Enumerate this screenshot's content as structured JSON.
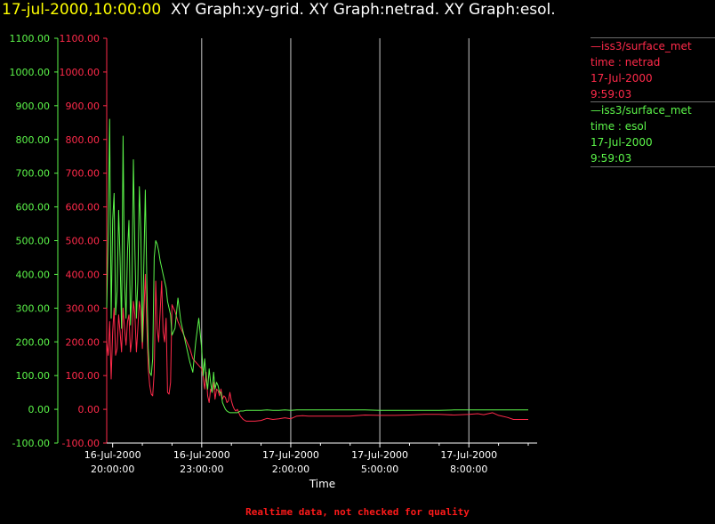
{
  "header": {
    "timestamp": "17-jul-2000,10:00:00",
    "graphs": "XY Graph:xy-grid.  XY Graph:netrad.  XY Graph:esol."
  },
  "colors": {
    "netrad": "#ff2a4a",
    "esol": "#5cf64a",
    "grid": "#c8c8c8",
    "axis": "#ffffff"
  },
  "legend": [
    {
      "line1": "—iss3/surface_met",
      "line2": "time : netrad",
      "line3": "17-Jul-2000",
      "line4": "9:59:03",
      "color": "#ff2a4a"
    },
    {
      "line1": "—iss3/surface_met",
      "line2": "time : esol",
      "line3": "17-Jul-2000",
      "line4": "9:59:03",
      "color": "#5cf64a"
    }
  ],
  "footer": "Realtime data, not checked for quality",
  "chart_data": {
    "type": "line",
    "xlabel": "Time",
    "x_ticks": [
      {
        "t": 20,
        "date": "16-Jul-2000",
        "time": "20:00:00"
      },
      {
        "t": 23,
        "date": "16-Jul-2000",
        "time": "23:00:00"
      },
      {
        "t": 26,
        "date": "17-Jul-2000",
        "time": "2:00:00"
      },
      {
        "t": 29,
        "date": "17-Jul-2000",
        "time": "5:00:00"
      },
      {
        "t": 32,
        "date": "17-Jul-2000",
        "time": "8:00:00"
      }
    ],
    "xlim": [
      19.8,
      34.3
    ],
    "ylim": [
      -100,
      1100
    ],
    "y_ticks": [
      -100,
      0,
      100,
      200,
      300,
      400,
      500,
      600,
      700,
      800,
      900,
      1000,
      1100
    ],
    "y_tick_labels": [
      "-100.00",
      "0.00",
      "100.00",
      "200.00",
      "300.00",
      "400.00",
      "500.00",
      "600.00",
      "700.00",
      "800.00",
      "900.00",
      "1000.00",
      "1100.00"
    ],
    "grid": "vertical",
    "series": [
      {
        "name": "netrad",
        "x": [
          19.8,
          19.85,
          19.9,
          19.95,
          20.0,
          20.05,
          20.1,
          20.15,
          20.2,
          20.25,
          20.3,
          20.35,
          20.4,
          20.45,
          20.5,
          20.55,
          20.6,
          20.65,
          20.7,
          20.75,
          20.8,
          20.85,
          20.9,
          20.95,
          21.0,
          21.05,
          21.1,
          21.15,
          21.2,
          21.25,
          21.3,
          21.35,
          21.4,
          21.45,
          21.5,
          21.55,
          21.6,
          21.65,
          21.7,
          21.75,
          21.8,
          21.85,
          21.9,
          21.95,
          22.0,
          22.1,
          22.2,
          22.3,
          22.4,
          22.5,
          22.6,
          22.7,
          22.8,
          22.9,
          23.0,
          23.05,
          23.1,
          23.15,
          23.2,
          23.25,
          23.3,
          23.35,
          23.4,
          23.45,
          23.5,
          23.55,
          23.6,
          23.65,
          23.7,
          23.75,
          23.8,
          23.85,
          23.9,
          23.95,
          24.0,
          24.05,
          24.1,
          24.15,
          24.2,
          24.3,
          24.4,
          24.5,
          24.6,
          24.8,
          25.0,
          25.2,
          25.4,
          25.6,
          25.8,
          26.0,
          26.2,
          26.4,
          26.6,
          26.8,
          27.0,
          27.5,
          28.0,
          28.5,
          29.0,
          29.5,
          30.0,
          30.5,
          31.0,
          31.5,
          32.0,
          32.3,
          32.5,
          32.8,
          33.0,
          33.3,
          33.5,
          33.8,
          34.0
        ],
        "y": [
          200,
          160,
          260,
          90,
          230,
          300,
          160,
          180,
          280,
          230,
          170,
          300,
          240,
          190,
          260,
          280,
          170,
          210,
          320,
          280,
          170,
          240,
          320,
          290,
          180,
          280,
          400,
          250,
          120,
          70,
          45,
          40,
          110,
          380,
          240,
          200,
          290,
          380,
          230,
          200,
          270,
          50,
          45,
          80,
          310,
          290,
          260,
          240,
          220,
          200,
          180,
          150,
          140,
          130,
          120,
          95,
          60,
          110,
          40,
          20,
          60,
          50,
          80,
          30,
          60,
          55,
          40,
          60,
          30,
          40,
          35,
          20,
          25,
          50,
          25,
          10,
          0,
          -5,
          0,
          -20,
          -30,
          -35,
          -35,
          -35,
          -33,
          -27,
          -30,
          -28,
          -25,
          -28,
          -20,
          -19,
          -20,
          -20,
          -20,
          -20,
          -20,
          -17,
          -18,
          -18,
          -17,
          -15,
          -15,
          -17,
          -15,
          -13,
          -16,
          -10,
          -18,
          -24,
          -30,
          -30,
          -30
        ]
      },
      {
        "name": "esol",
        "x": [
          19.8,
          19.85,
          19.9,
          19.95,
          20.0,
          20.05,
          20.1,
          20.15,
          20.2,
          20.25,
          20.3,
          20.35,
          20.4,
          20.45,
          20.5,
          20.55,
          20.6,
          20.65,
          20.7,
          20.75,
          20.8,
          20.85,
          20.9,
          20.95,
          21.0,
          21.05,
          21.1,
          21.15,
          21.2,
          21.25,
          21.3,
          21.35,
          21.4,
          21.45,
          21.5,
          21.55,
          21.6,
          21.65,
          21.7,
          21.75,
          21.8,
          21.85,
          21.9,
          21.95,
          22.0,
          22.1,
          22.2,
          22.3,
          22.4,
          22.5,
          22.6,
          22.7,
          22.8,
          22.9,
          23.0,
          23.05,
          23.1,
          23.15,
          23.2,
          23.25,
          23.3,
          23.35,
          23.4,
          23.45,
          23.5,
          23.55,
          23.6,
          23.65,
          23.7,
          23.75,
          23.8,
          23.85,
          23.9,
          23.95,
          24.0,
          24.05,
          24.1,
          24.15,
          24.2,
          24.3,
          24.4,
          24.5,
          24.6,
          24.8,
          25.0,
          25.2,
          25.4,
          25.6,
          25.8,
          26.0,
          26.2,
          26.4,
          26.6,
          26.8,
          27.0,
          27.5,
          28.0,
          28.5,
          29.0,
          29.5,
          30.0,
          30.5,
          31.0,
          31.5,
          32.0,
          32.3,
          32.5,
          32.8,
          33.0,
          33.3,
          33.5,
          33.8,
          34.0
        ],
        "y": [
          300,
          530,
          860,
          270,
          560,
          640,
          280,
          350,
          590,
          450,
          240,
          810,
          380,
          270,
          470,
          560,
          250,
          370,
          740,
          470,
          270,
          380,
          660,
          520,
          200,
          420,
          650,
          380,
          180,
          110,
          100,
          150,
          450,
          500,
          490,
          470,
          440,
          420,
          400,
          380,
          360,
          320,
          300,
          280,
          220,
          240,
          330,
          260,
          220,
          180,
          140,
          110,
          200,
          270,
          180,
          100,
          150,
          90,
          60,
          120,
          80,
          50,
          110,
          60,
          80,
          70,
          50,
          50,
          20,
          10,
          0,
          -5,
          -8,
          -10,
          -10,
          -10,
          -10,
          -10,
          -10,
          -5,
          -5,
          -3,
          -3,
          -3,
          -3,
          -2,
          -3,
          -3,
          -2,
          -3,
          -2,
          -2,
          -2,
          -2,
          -2,
          -2,
          -2,
          -2,
          -3,
          -3,
          -3,
          -3,
          -3,
          -2,
          -2,
          -2,
          -2,
          -2,
          -2,
          -2,
          -2,
          -2,
          -2
        ]
      }
    ]
  }
}
